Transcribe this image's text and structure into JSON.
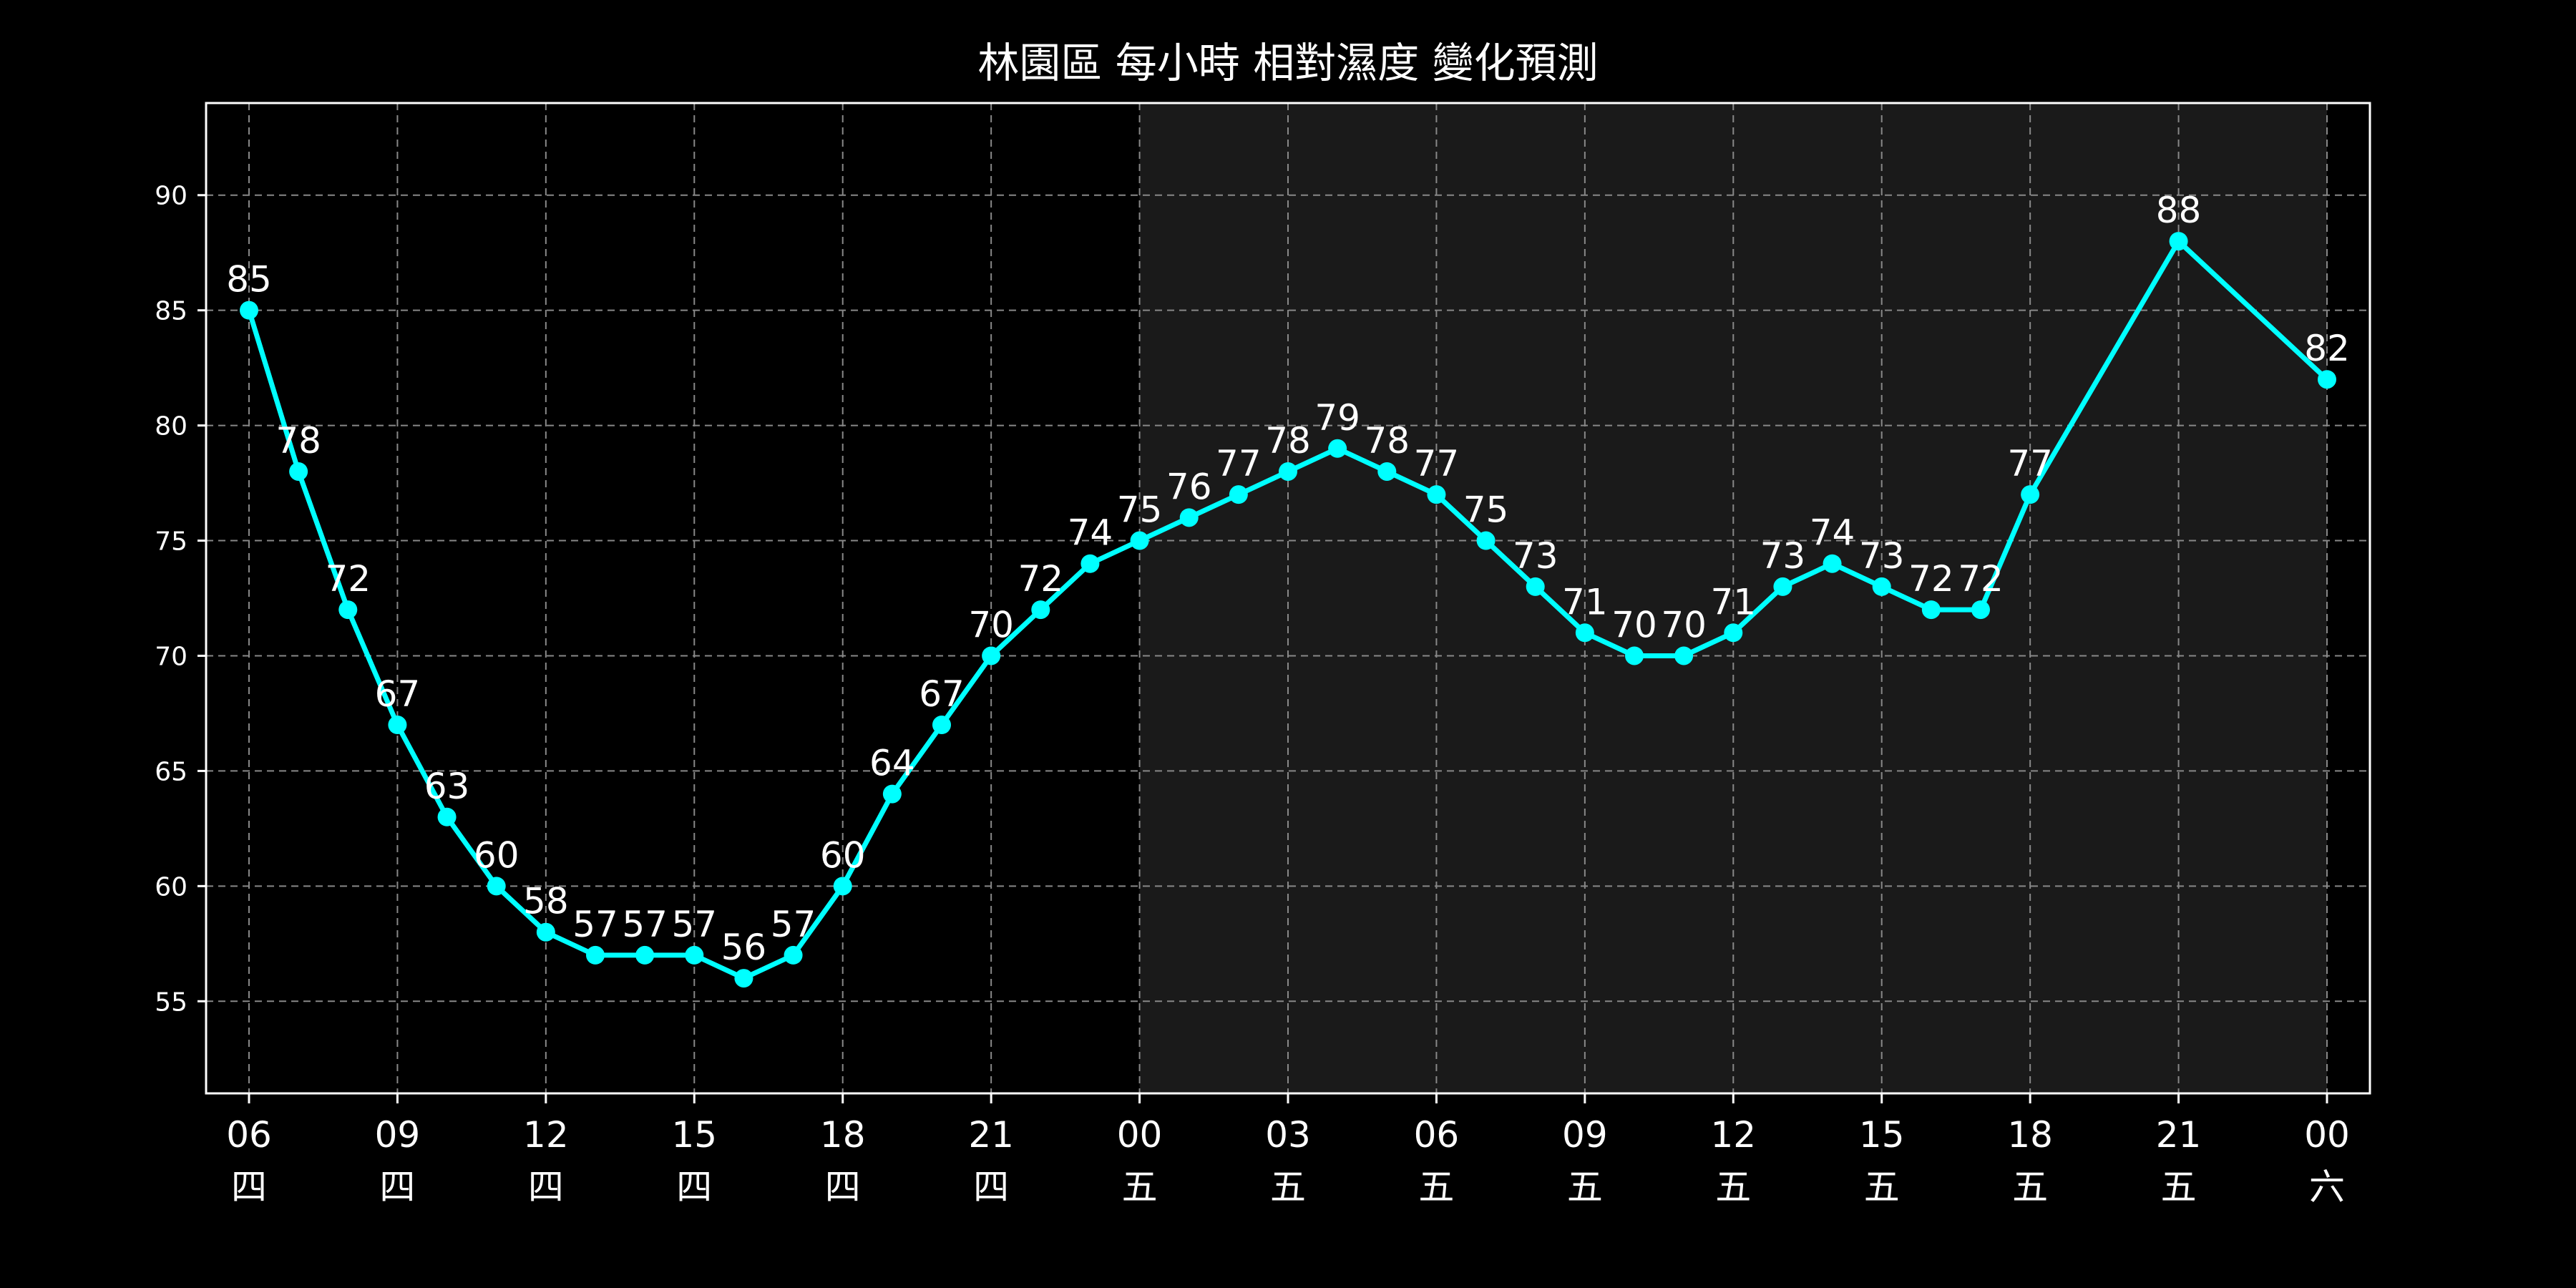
{
  "chart_data": {
    "type": "line",
    "title": "林園區 每小時 相對濕度 變化預測",
    "xlabel": "",
    "ylabel": "",
    "ylim": [
      51,
      94
    ],
    "y_ticks": [
      55,
      60,
      65,
      70,
      75,
      80,
      85,
      90
    ],
    "grid": true,
    "line_color": "#00ffff",
    "background_color": "#000000",
    "shade_color": "#1a1a1a",
    "grid_color": "#888888",
    "text_color": "#ffffff",
    "shaded_span": {
      "from_index": 18,
      "to_index": 38
    },
    "x": [
      "06 四",
      "07 四",
      "08 四",
      "09 四",
      "10 四",
      "11 四",
      "12 四",
      "13 四",
      "14 四",
      "15 四",
      "16 四",
      "17 四",
      "18 四",
      "19 四",
      "20 四",
      "21 四",
      "22 四",
      "23 四",
      "00 五",
      "01 五",
      "02 五",
      "03 五",
      "04 五",
      "05 五",
      "06 五",
      "07 五",
      "08 五",
      "09 五",
      "10 五",
      "11 五",
      "12 五",
      "13 五",
      "14 五",
      "15 五",
      "16 五",
      "17 五",
      "18 五",
      "21 五",
      "00 六"
    ],
    "series": [
      {
        "values": [
          85,
          78,
          72,
          67,
          63,
          60,
          58,
          57,
          57,
          57,
          56,
          57,
          60,
          64,
          67,
          70,
          72,
          74,
          75,
          76,
          77,
          78,
          79,
          78,
          77,
          75,
          73,
          71,
          70,
          70,
          71,
          73,
          74,
          73,
          72,
          72,
          77,
          88,
          82
        ]
      }
    ],
    "x_tick_labels": [
      {
        "index": 0,
        "hour": "06",
        "day": "四"
      },
      {
        "index": 3,
        "hour": "09",
        "day": "四"
      },
      {
        "index": 6,
        "hour": "12",
        "day": "四"
      },
      {
        "index": 9,
        "hour": "15",
        "day": "四"
      },
      {
        "index": 12,
        "hour": "18",
        "day": "四"
      },
      {
        "index": 15,
        "hour": "21",
        "day": "四"
      },
      {
        "index": 18,
        "hour": "00",
        "day": "五"
      },
      {
        "index": 21,
        "hour": "03",
        "day": "五"
      },
      {
        "index": 24,
        "hour": "06",
        "day": "五"
      },
      {
        "index": 27,
        "hour": "09",
        "day": "五"
      },
      {
        "index": 30,
        "hour": "12",
        "day": "五"
      },
      {
        "index": 33,
        "hour": "15",
        "day": "五"
      },
      {
        "index": 36,
        "hour": "18",
        "day": "五"
      },
      {
        "index": 37,
        "hour": "21",
        "day": "五"
      },
      {
        "index": 38,
        "hour": "00",
        "day": "六"
      }
    ]
  }
}
